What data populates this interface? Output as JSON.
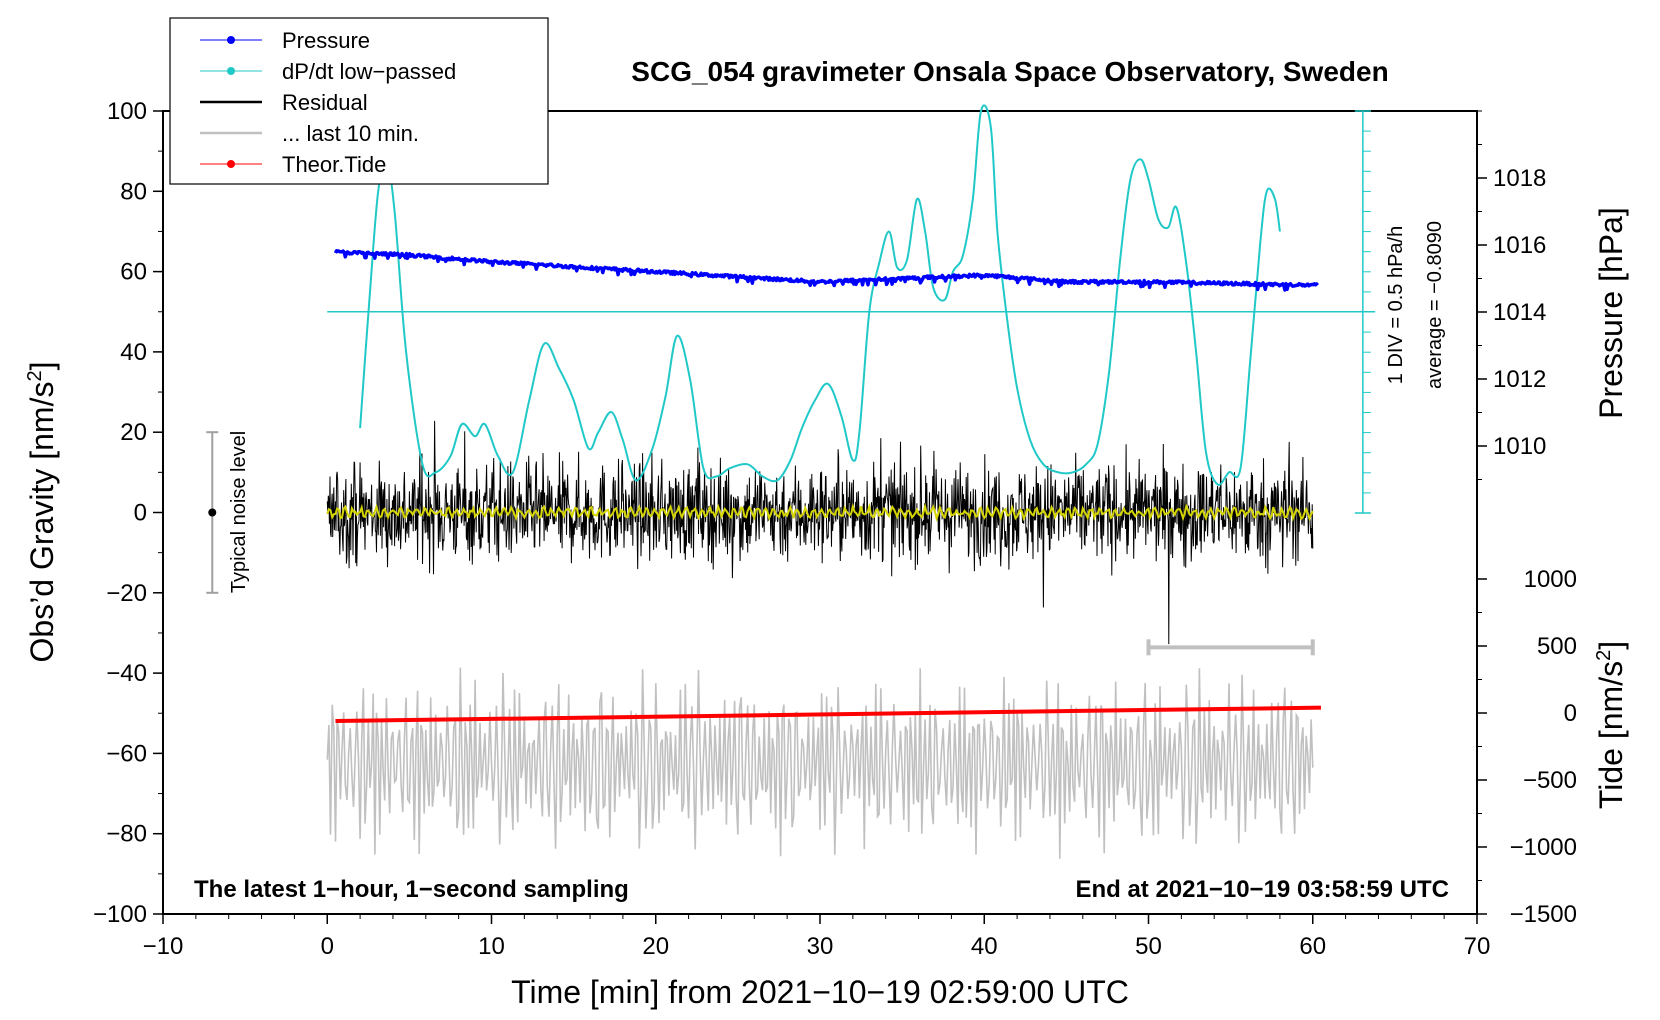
{
  "chart_data": {
    "type": "line",
    "title": "SCG_054 gravimeter Onsala Space Observatory, Sweden",
    "xlabel": "Time [min] from 2021−10−19 02:59:00 UTC",
    "ylabel_left": "Obs’d Gravity [nm/s",
    "ylabel_left_sup": "2",
    "ylabel_left_end": "]",
    "ylabel_right_pressure": "Pressure [hPa]",
    "ylabel_right_tide": "Tide [nm/s",
    "ylabel_right_tide_sup": "2",
    "ylabel_right_tide_end": "]",
    "xlim": [
      -10,
      70
    ],
    "ylim_left": [
      -100,
      100
    ],
    "x_ticks": [
      "−10",
      "0",
      "10",
      "20",
      "30",
      "40",
      "50",
      "60",
      "70"
    ],
    "x_tick_values": [
      -10,
      0,
      10,
      20,
      30,
      40,
      50,
      60,
      70
    ],
    "left_ticks": [
      "100",
      "80",
      "60",
      "40",
      "20",
      "0",
      "−20",
      "−40",
      "−60",
      "−80",
      "−100"
    ],
    "left_tick_values": [
      100,
      80,
      60,
      40,
      20,
      0,
      -20,
      -40,
      -60,
      -80,
      -100
    ],
    "pressure_ticks": [
      "1018",
      "1016",
      "1014",
      "1012",
      "1010"
    ],
    "pressure_tick_values": [
      1018,
      1016,
      1014,
      1012,
      1010
    ],
    "pressure_range": [
      1008,
      1020
    ],
    "tide_ticks": [
      "1000",
      "500",
      "0",
      "−500",
      "−1000",
      "−1500"
    ],
    "tide_tick_values": [
      1000,
      500,
      0,
      -500,
      -1000,
      -1500
    ],
    "tide_range": [
      -1500,
      1500
    ],
    "legend": [
      {
        "name": "Pressure",
        "color": "#0000ff",
        "marker": true
      },
      {
        "name": "dP/dt low−passed",
        "color": "#20c8c8",
        "marker": true
      },
      {
        "name": "Residual",
        "color": "#000000",
        "marker": false
      },
      {
        "name": "... last 10 min.",
        "color": "#c0c0c0",
        "marker": false
      },
      {
        "name": "Theor.Tide",
        "color": "#ff0000",
        "marker": true
      }
    ],
    "pressure": {
      "x": [
        0,
        5,
        10,
        20,
        30,
        35,
        40,
        45,
        50,
        60
      ],
      "values": [
        1015.8,
        1015.7,
        1015.5,
        1015.2,
        1014.9,
        1015.0,
        1015.1,
        1014.9,
        1014.9,
        1014.8
      ]
    },
    "dpdt": {
      "x": [
        2.0,
        2.6,
        3.1,
        3.6,
        4.1,
        4.8,
        5.8,
        6.6,
        7.5,
        8.2,
        9.0,
        9.6,
        10.4,
        11.3,
        12.3,
        13.2,
        14.1,
        15.0,
        15.9,
        16.5,
        17.3,
        18.0,
        18.8,
        19.8,
        20.6,
        21.3,
        22.1,
        22.9,
        23.7,
        24.5,
        25.6,
        26.5,
        27.4,
        28.2,
        28.9,
        29.7,
        30.5,
        31.3,
        32.0,
        32.4,
        33.0,
        33.6,
        34.2,
        34.7,
        35.3,
        35.9,
        36.4,
        36.9,
        37.6,
        38.1,
        38.7,
        39.3,
        39.8,
        40.4,
        40.8,
        41.4,
        42.0,
        42.8,
        43.6,
        44.5,
        45.4,
        46.2,
        46.9,
        47.6,
        48.3,
        48.9,
        49.5,
        50.0,
        50.6,
        51.2,
        51.7,
        52.3,
        52.9,
        53.5,
        54.2,
        54.9,
        55.6,
        56.2,
        56.8,
        57.2,
        57.7,
        58.0
      ],
      "values": [
        21,
        55,
        80,
        88,
        75,
        40,
        12,
        10,
        14,
        22,
        19,
        22,
        14,
        10,
        28,
        42,
        36,
        28,
        16,
        20,
        25,
        18,
        8,
        16,
        29,
        44,
        33,
        11,
        9,
        11,
        12,
        9,
        8,
        13,
        21,
        28,
        32,
        24,
        13,
        20,
        50,
        62,
        70,
        61,
        63,
        78,
        70,
        56,
        53,
        60,
        64,
        78,
        100,
        96,
        70,
        48,
        31,
        18,
        12,
        10,
        10,
        12,
        17,
        35,
        64,
        83,
        88,
        83,
        73,
        71,
        76,
        62,
        40,
        15,
        7,
        10,
        11,
        38,
        67,
        80,
        78,
        70
      ]
    },
    "dpdt_baseline": 50,
    "dpdt_scale_label": "1 DIV = 0.5 hPa/h",
    "dpdt_average_label": "average = −0.8090",
    "tide": {
      "x": [
        0.5,
        60.5
      ],
      "values": [
        -60,
        40
      ]
    },
    "residual_smooth_value": 0,
    "residual_amplitude": 22,
    "last10_amplitude": 800,
    "last10_range_label_x": [
      50,
      60
    ],
    "noise_level": {
      "label": "Typical noise level",
      "range": [
        -20,
        20
      ],
      "x": -7
    },
    "bottom_left_note": "The latest 1−hour, 1−second sampling",
    "bottom_right_note": "End at 2021−10−19 03:58:59 UTC",
    "colors": {
      "pressure": "#0000ff",
      "dpdt": "#20c8c8",
      "residual": "#000000",
      "last10": "#c0c0c0",
      "tide": "#ff0000",
      "smooth": "#d4d400",
      "noise": "#a0a0a0"
    }
  }
}
